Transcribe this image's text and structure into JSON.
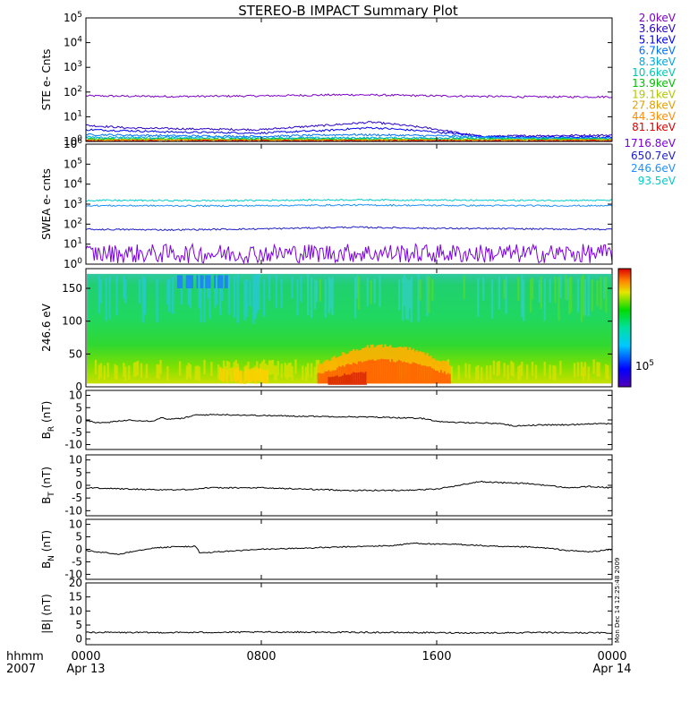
{
  "title": "STEREO-B IMPACT Summary Plot",
  "stamp": "Mon Dec 14 12:25:48 2009",
  "time_axis": {
    "corner_top": "hhmm",
    "corner_bottom": "2007",
    "ticks": [
      {
        "hhmm": "0000",
        "date": "Apr 13",
        "hour": 0
      },
      {
        "hhmm": "0800",
        "date": "",
        "hour": 8
      },
      {
        "hhmm": "1600",
        "date": "",
        "hour": 16
      },
      {
        "hhmm": "0000",
        "date": "Apr 14",
        "hour": 24
      }
    ],
    "range_hours": [
      0,
      24
    ]
  },
  "chart_data": [
    {
      "id": "ste",
      "type": "line",
      "ylabel": "STE e- Cnts",
      "yscale": "log",
      "ylim": [
        1,
        100000
      ],
      "yticks": [
        {
          "base": "10",
          "exp": "0",
          "v": 1
        },
        {
          "base": "10",
          "exp": "1",
          "v": 10
        },
        {
          "base": "10",
          "exp": "2",
          "v": 100
        },
        {
          "base": "10",
          "exp": "3",
          "v": 1000
        },
        {
          "base": "10",
          "exp": "4",
          "v": 10000
        },
        {
          "base": "10",
          "exp": "5",
          "v": 100000
        }
      ],
      "series": [
        {
          "name": "2.0keV",
          "color": "#7b00c8",
          "x": [
            0,
            4,
            8,
            12,
            16,
            20,
            24
          ],
          "y": [
            70,
            66,
            70,
            78,
            70,
            64,
            64
          ]
        },
        {
          "name": "3.6keV",
          "color": "#2a00c8",
          "x": [
            0,
            2,
            5,
            8,
            11,
            13,
            15,
            17,
            18,
            20,
            24
          ],
          "y": [
            4.5,
            3.5,
            3.2,
            3.0,
            4.5,
            6.0,
            4.0,
            2.2,
            1.6,
            1.7,
            1.8
          ]
        },
        {
          "name": "5.1keV",
          "color": "#0000ff",
          "x": [
            0,
            4,
            8,
            11,
            13,
            15,
            16.5,
            18,
            20,
            24
          ],
          "y": [
            3.0,
            2.4,
            2.2,
            2.8,
            3.6,
            2.8,
            2.2,
            1.6,
            1.5,
            1.5
          ]
        },
        {
          "name": "6.7keV",
          "color": "#0070ff",
          "x": [
            0,
            4,
            8,
            12,
            16,
            20,
            24
          ],
          "y": [
            1.9,
            1.7,
            1.6,
            1.9,
            1.7,
            1.4,
            1.4
          ]
        },
        {
          "name": "8.3keV",
          "color": "#00a8e0",
          "x": [
            0,
            8,
            16,
            24
          ],
          "y": [
            1.5,
            1.4,
            1.4,
            1.3
          ]
        },
        {
          "name": "10.6keV",
          "color": "#00c8b0",
          "x": [
            0,
            24
          ],
          "y": [
            1.3,
            1.25
          ]
        },
        {
          "name": "13.9keV",
          "color": "#00c000",
          "x": [
            0,
            24
          ],
          "y": [
            1.22,
            1.2
          ]
        },
        {
          "name": "19.1keV",
          "color": "#b0c800",
          "x": [
            0,
            24
          ],
          "y": [
            1.16,
            1.15
          ]
        },
        {
          "name": "27.8keV",
          "color": "#e0a000",
          "x": [
            0,
            24
          ],
          "y": [
            1.12,
            1.1
          ]
        },
        {
          "name": "44.3keV",
          "color": "#ff8c00",
          "x": [
            0,
            24
          ],
          "y": [
            1.08,
            1.08
          ]
        },
        {
          "name": "81.1keV",
          "color": "#e00000",
          "x": [
            0,
            24
          ],
          "y": [
            1.04,
            1.04
          ]
        }
      ]
    },
    {
      "id": "swea",
      "type": "line",
      "ylabel": "SWEA e- cnts",
      "yscale": "log",
      "ylim": [
        1,
        1000000
      ],
      "yticks": [
        {
          "base": "10",
          "exp": "0",
          "v": 1
        },
        {
          "base": "10",
          "exp": "1",
          "v": 10
        },
        {
          "base": "10",
          "exp": "2",
          "v": 100
        },
        {
          "base": "10",
          "exp": "3",
          "v": 1000
        },
        {
          "base": "10",
          "exp": "4",
          "v": 10000
        },
        {
          "base": "10",
          "exp": "5",
          "v": 100000
        },
        {
          "base": "10",
          "exp": "6",
          "v": 1000000
        }
      ],
      "series": [
        {
          "name": "1716.8eV",
          "color": "#7b00e0",
          "x": [
            0,
            6,
            12,
            18,
            24
          ],
          "y": [
            3,
            3,
            3.2,
            3,
            3
          ]
        },
        {
          "name": "650.7eV",
          "color": "#1e1ec8",
          "x": [
            0,
            4,
            8,
            12,
            16,
            20,
            24
          ],
          "y": [
            55,
            52,
            58,
            70,
            62,
            58,
            55
          ]
        },
        {
          "name": "246.6eV",
          "color": "#1e90ff",
          "x": [
            0,
            6,
            12,
            18,
            24
          ],
          "y": [
            850,
            820,
            900,
            850,
            830
          ]
        },
        {
          "name": "93.5eV",
          "color": "#00cccc",
          "x": [
            0,
            6,
            12,
            18,
            24
          ],
          "y": [
            1550,
            1500,
            1650,
            1550,
            1550
          ]
        }
      ]
    },
    {
      "id": "pad",
      "type": "heatmap",
      "ylabel": "246.6 eV",
      "ylim": [
        0,
        180
      ],
      "yticks": [
        0,
        50,
        100,
        150
      ],
      "colorbar_label": "10",
      "colorbar_exp": "5"
    },
    {
      "id": "br",
      "type": "line",
      "ylabel": "B",
      "ysub": "R",
      "yunit": "(nT)",
      "ylim": [
        -12,
        12
      ],
      "yticks": [
        -10,
        -5,
        0,
        5,
        10
      ],
      "series": [
        {
          "name": "",
          "color": "#000000",
          "x": [
            0,
            0.5,
            1,
            1.5,
            2,
            3,
            3.5,
            3.8,
            4.5,
            5,
            6,
            7,
            8,
            10,
            12,
            14,
            15.5,
            16,
            16.5,
            17,
            18,
            19,
            19.5,
            20,
            21,
            22,
            23,
            24
          ],
          "y": [
            0,
            -1.2,
            -1,
            -0.5,
            0,
            -0.5,
            1,
            0.2,
            0.8,
            2,
            2.2,
            2,
            1.8,
            1.5,
            1.3,
            1,
            0.5,
            -0.5,
            -1,
            -1,
            -1.2,
            -1.5,
            -2.5,
            -2.2,
            -2,
            -2,
            -1.5,
            -1.5
          ]
        }
      ]
    },
    {
      "id": "bt",
      "type": "line",
      "ylabel": "B",
      "ysub": "T",
      "yunit": "(nT)",
      "ylim": [
        -12,
        12
      ],
      "yticks": [
        -10,
        -5,
        0,
        5,
        10
      ],
      "series": [
        {
          "name": "",
          "color": "#000000",
          "x": [
            0,
            1,
            2,
            4,
            5,
            5.5,
            6,
            8,
            10,
            12,
            14,
            15,
            16,
            17,
            18,
            19,
            20,
            21,
            22,
            23,
            24
          ],
          "y": [
            -1,
            -1.2,
            -1.5,
            -1.8,
            -1.5,
            -1,
            -1,
            -1,
            -1.5,
            -2,
            -2,
            -1.8,
            -1.5,
            0,
            1.5,
            1,
            0.8,
            0,
            -1,
            -0.5,
            -1
          ]
        }
      ]
    },
    {
      "id": "bn",
      "type": "line",
      "ylabel": "B",
      "ysub": "N",
      "yunit": "(nT)",
      "ylim": [
        -12,
        12
      ],
      "yticks": [
        -10,
        -5,
        0,
        5,
        10
      ],
      "series": [
        {
          "name": "",
          "color": "#000000",
          "x": [
            0,
            1,
            1.5,
            2,
            3,
            4,
            5,
            5.2,
            6,
            7,
            8,
            10,
            12,
            14,
            15,
            16,
            17,
            18,
            19,
            20,
            21,
            22,
            23,
            24
          ],
          "y": [
            -0.5,
            -1.5,
            -2,
            -1,
            0.5,
            1,
            1.2,
            -1.5,
            -1,
            -0.5,
            0,
            0.5,
            1,
            1.5,
            2.5,
            2,
            2,
            1.5,
            1,
            1,
            0.5,
            -0.5,
            -1,
            0
          ]
        }
      ]
    },
    {
      "id": "bmag",
      "type": "line",
      "ylabel": "|B|",
      "yunit": "(nT)",
      "ylim": [
        -2,
        20
      ],
      "yticks": [
        0,
        5,
        10,
        15,
        20
      ],
      "series": [
        {
          "name": "",
          "color": "#000000",
          "x": [
            0,
            3,
            6,
            9,
            12,
            15,
            18,
            21,
            24
          ],
          "y": [
            2.4,
            2.3,
            2.4,
            2.5,
            2.4,
            2.3,
            2.2,
            2.3,
            2.2
          ]
        }
      ]
    }
  ]
}
